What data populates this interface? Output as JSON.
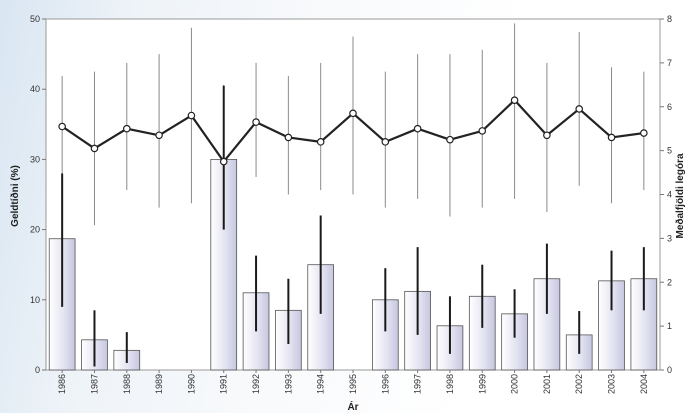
{
  "chart_data": {
    "type": "bar+line",
    "x_label": "Ár",
    "y_left_label": "Geldtíðni (%)",
    "y_right_label": "Meðalfjöldi legóra",
    "y_left_range": [
      0,
      50
    ],
    "y_left_ticks": [
      "0",
      "10",
      "20",
      "30",
      "40",
      "50"
    ],
    "y_right_range": [
      0,
      8
    ],
    "y_right_ticks": [
      "0",
      "1",
      "2",
      "3",
      "4",
      "5",
      "6",
      "7",
      "8"
    ],
    "grid": false,
    "categories": [
      "1986",
      "1987",
      "1988",
      "1989",
      "1990",
      "1991",
      "1992",
      "1993",
      "1994",
      "1995",
      "1996",
      "1997",
      "1998",
      "1999",
      "2000",
      "2001",
      "2002",
      "2003",
      "2004"
    ],
    "bars": {
      "axis": "left",
      "values": [
        18.7,
        4.3,
        2.8,
        0,
        0,
        30,
        11,
        8.5,
        15,
        0,
        10,
        11.2,
        6.3,
        10.5,
        8,
        13,
        5,
        12.7,
        13
      ],
      "error_low": [
        9,
        0.5,
        1,
        null,
        null,
        20,
        5.5,
        3.7,
        8,
        null,
        5.5,
        5,
        2.3,
        6,
        4.6,
        8,
        2.3,
        8.5,
        8.5
      ],
      "error_high": [
        28,
        8.5,
        5.4,
        null,
        null,
        40.5,
        16.3,
        13,
        22,
        null,
        14.5,
        17.5,
        10.5,
        15,
        11.5,
        18,
        8.4,
        17,
        17.5
      ],
      "fill": "#cfcfe8"
    },
    "line": {
      "axis": "right",
      "values": [
        5.55,
        5.05,
        5.5,
        5.35,
        5.8,
        4.75,
        5.65,
        5.3,
        5.2,
        5.85,
        5.2,
        5.5,
        5.25,
        5.45,
        6.15,
        5.35,
        5.95,
        5.3,
        5.4
      ],
      "error_low": [
        3.4,
        3.3,
        4.1,
        3.7,
        3.8,
        3.2,
        4.4,
        4.0,
        4.1,
        4.0,
        3.7,
        3.9,
        3.5,
        3.7,
        3.9,
        3.6,
        4.2,
        3.8,
        4.1
      ],
      "error_high": [
        6.7,
        6.8,
        7.0,
        7.2,
        7.8,
        6.5,
        7.0,
        6.7,
        7.0,
        7.6,
        6.8,
        7.2,
        7.2,
        7.3,
        7.9,
        7.0,
        7.7,
        6.9,
        6.8
      ],
      "color": "#222222"
    }
  }
}
